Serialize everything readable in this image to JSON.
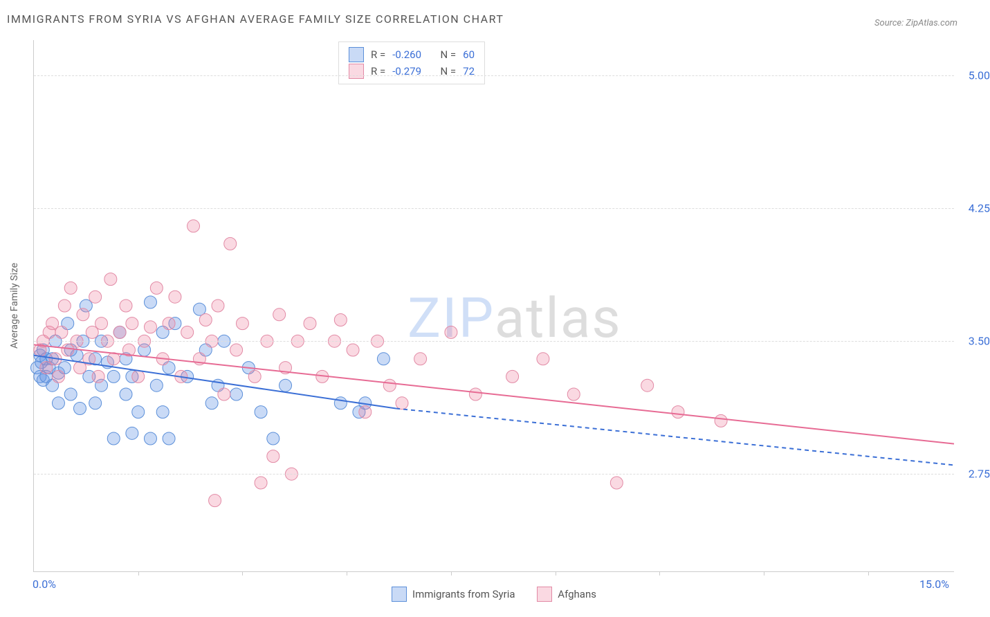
{
  "title": "IMMIGRANTS FROM SYRIA VS AFGHAN AVERAGE FAMILY SIZE CORRELATION CHART",
  "source": "Source: ZipAtlas.com",
  "y_axis_label": "Average Family Size",
  "watermark_a": "ZIP",
  "watermark_b": "atlas",
  "legend_bottom": {
    "series1": "Immigrants from Syria",
    "series2": "Afghans"
  },
  "legend_top": {
    "r_label": "R =",
    "n_label": "N =",
    "series1_r": "-0.260",
    "series1_n": "60",
    "series2_r": "-0.279",
    "series2_n": "72"
  },
  "chart": {
    "type": "scatter",
    "xlim": [
      0,
      15
    ],
    "ylim": [
      2.2,
      5.2
    ],
    "x_ticks_major": [
      0,
      15
    ],
    "x_ticks_minor": [
      1.7,
      3.4,
      5.1,
      6.8,
      8.5,
      10.2,
      11.9,
      13.6
    ],
    "x_tick_labels": {
      "0": "0.0%",
      "15": "15.0%"
    },
    "y_ticks": [
      2.75,
      3.5,
      4.25,
      5.0
    ],
    "y_tick_labels": {
      "2.75": "2.75",
      "3.5": "3.50",
      "4.25": "4.25",
      "5": "5.00"
    },
    "grid_color": "#dddddd",
    "axis_color": "#cccccc",
    "background_color": "#ffffff",
    "tick_label_color": "#3b6fd6",
    "tick_label_fontsize": 16,
    "title_fontsize": 16,
    "title_color": "#555555",
    "marker_radius": 9,
    "marker_opacity": 0.55,
    "series": [
      {
        "name": "Immigrants from Syria",
        "marker_fill": "rgba(100,150,230,0.35)",
        "marker_stroke": "#5b8fd9",
        "line_color": "#3b6fd6",
        "line_width": 2,
        "trend": {
          "x1": 0,
          "y1": 3.42,
          "x2": 5.9,
          "y2": 3.12
        },
        "trend_ext": {
          "x1": 5.9,
          "y1": 3.12,
          "x2": 15,
          "y2": 2.8,
          "dash": "6,5"
        },
        "points": [
          [
            0.05,
            3.35
          ],
          [
            0.1,
            3.3
          ],
          [
            0.1,
            3.42
          ],
          [
            0.12,
            3.38
          ],
          [
            0.15,
            3.28
          ],
          [
            0.15,
            3.45
          ],
          [
            0.2,
            3.4
          ],
          [
            0.2,
            3.3
          ],
          [
            0.25,
            3.35
          ],
          [
            0.3,
            3.4
          ],
          [
            0.3,
            3.25
          ],
          [
            0.35,
            3.5
          ],
          [
            0.4,
            3.32
          ],
          [
            0.4,
            3.15
          ],
          [
            0.5,
            3.35
          ],
          [
            0.55,
            3.6
          ],
          [
            0.6,
            3.45
          ],
          [
            0.6,
            3.2
          ],
          [
            0.7,
            3.42
          ],
          [
            0.75,
            3.12
          ],
          [
            0.8,
            3.5
          ],
          [
            0.85,
            3.7
          ],
          [
            0.9,
            3.3
          ],
          [
            1.0,
            3.4
          ],
          [
            1.0,
            3.15
          ],
          [
            1.1,
            3.25
          ],
          [
            1.1,
            3.5
          ],
          [
            1.2,
            3.38
          ],
          [
            1.3,
            2.95
          ],
          [
            1.3,
            3.3
          ],
          [
            1.4,
            3.55
          ],
          [
            1.5,
            3.2
          ],
          [
            1.5,
            3.4
          ],
          [
            1.6,
            3.3
          ],
          [
            1.6,
            2.98
          ],
          [
            1.7,
            3.1
          ],
          [
            1.8,
            3.45
          ],
          [
            1.9,
            3.72
          ],
          [
            1.9,
            2.95
          ],
          [
            2.0,
            3.25
          ],
          [
            2.1,
            3.55
          ],
          [
            2.1,
            3.1
          ],
          [
            2.2,
            3.35
          ],
          [
            2.2,
            2.95
          ],
          [
            2.3,
            3.6
          ],
          [
            2.5,
            3.3
          ],
          [
            2.7,
            3.68
          ],
          [
            2.8,
            3.45
          ],
          [
            2.9,
            3.15
          ],
          [
            3.0,
            3.25
          ],
          [
            3.1,
            3.5
          ],
          [
            3.3,
            3.2
          ],
          [
            3.5,
            3.35
          ],
          [
            3.7,
            3.1
          ],
          [
            3.9,
            2.95
          ],
          [
            4.1,
            3.25
          ],
          [
            5.0,
            3.15
          ],
          [
            5.3,
            3.1
          ],
          [
            5.4,
            3.15
          ],
          [
            5.7,
            3.4
          ]
        ]
      },
      {
        "name": "Afghans",
        "marker_fill": "rgba(240,130,160,0.3)",
        "marker_stroke": "#e28aa5",
        "line_color": "#e76b94",
        "line_width": 2,
        "trend": {
          "x1": 0,
          "y1": 3.48,
          "x2": 15,
          "y2": 2.92
        },
        "points": [
          [
            0.1,
            3.45
          ],
          [
            0.15,
            3.5
          ],
          [
            0.2,
            3.35
          ],
          [
            0.25,
            3.55
          ],
          [
            0.3,
            3.6
          ],
          [
            0.35,
            3.4
          ],
          [
            0.4,
            3.3
          ],
          [
            0.45,
            3.55
          ],
          [
            0.5,
            3.7
          ],
          [
            0.55,
            3.45
          ],
          [
            0.6,
            3.8
          ],
          [
            0.7,
            3.5
          ],
          [
            0.75,
            3.35
          ],
          [
            0.8,
            3.65
          ],
          [
            0.9,
            3.4
          ],
          [
            0.95,
            3.55
          ],
          [
            1.0,
            3.75
          ],
          [
            1.05,
            3.3
          ],
          [
            1.1,
            3.6
          ],
          [
            1.2,
            3.5
          ],
          [
            1.25,
            3.85
          ],
          [
            1.3,
            3.4
          ],
          [
            1.4,
            3.55
          ],
          [
            1.5,
            3.7
          ],
          [
            1.55,
            3.45
          ],
          [
            1.6,
            3.6
          ],
          [
            1.7,
            3.3
          ],
          [
            1.8,
            3.5
          ],
          [
            1.9,
            3.58
          ],
          [
            2.0,
            3.8
          ],
          [
            2.1,
            3.4
          ],
          [
            2.2,
            3.6
          ],
          [
            2.3,
            3.75
          ],
          [
            2.4,
            3.3
          ],
          [
            2.5,
            3.55
          ],
          [
            2.6,
            4.15
          ],
          [
            2.7,
            3.4
          ],
          [
            2.8,
            3.62
          ],
          [
            2.9,
            3.5
          ],
          [
            3.0,
            3.7
          ],
          [
            3.1,
            3.2
          ],
          [
            3.2,
            4.05
          ],
          [
            3.3,
            3.45
          ],
          [
            3.4,
            3.6
          ],
          [
            3.6,
            3.3
          ],
          [
            3.7,
            2.7
          ],
          [
            3.8,
            3.5
          ],
          [
            3.9,
            2.85
          ],
          [
            4.0,
            3.65
          ],
          [
            4.1,
            3.35
          ],
          [
            4.3,
            3.5
          ],
          [
            4.5,
            3.6
          ],
          [
            4.7,
            3.3
          ],
          [
            4.9,
            3.5
          ],
          [
            5.0,
            3.62
          ],
          [
            5.2,
            3.45
          ],
          [
            5.4,
            3.1
          ],
          [
            5.6,
            3.5
          ],
          [
            5.8,
            3.25
          ],
          [
            6.0,
            3.15
          ],
          [
            6.3,
            3.4
          ],
          [
            6.8,
            3.55
          ],
          [
            7.2,
            3.2
          ],
          [
            7.8,
            3.3
          ],
          [
            8.3,
            3.4
          ],
          [
            8.8,
            3.2
          ],
          [
            9.5,
            2.7
          ],
          [
            10.5,
            3.1
          ],
          [
            11.2,
            3.05
          ],
          [
            10.0,
            3.25
          ],
          [
            4.2,
            2.75
          ],
          [
            2.95,
            2.6
          ]
        ]
      }
    ]
  }
}
